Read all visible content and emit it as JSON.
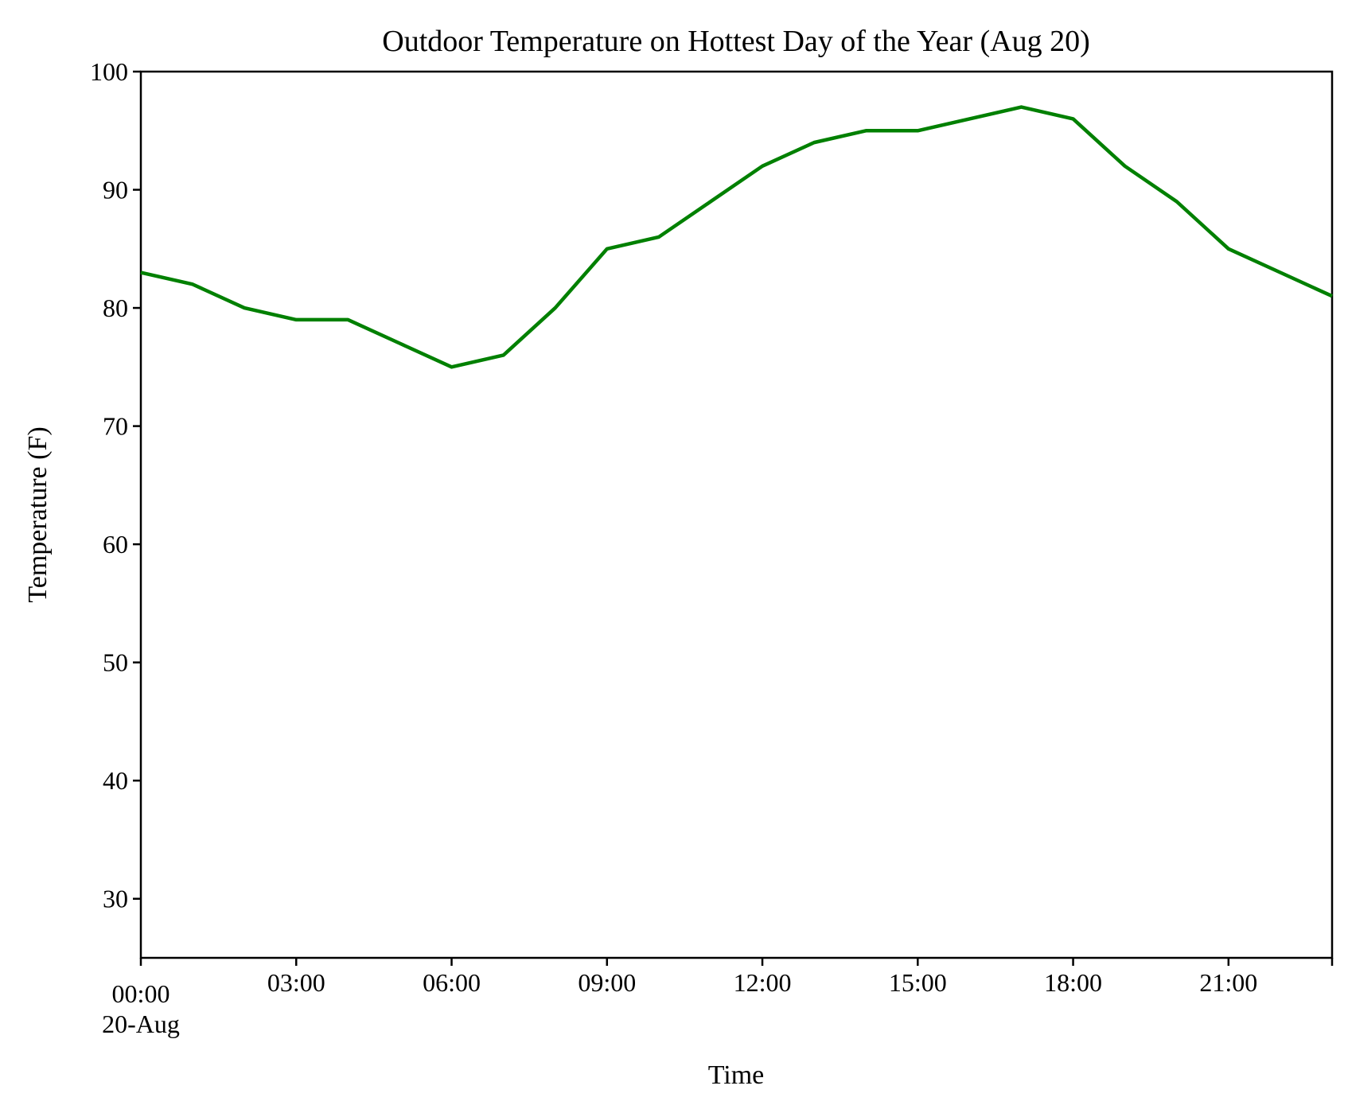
{
  "chart_data": {
    "type": "line",
    "title": "Outdoor Temperature on Hottest Day of the Year (Aug 20)",
    "xlabel": "Time",
    "ylabel": "Temperature (F)",
    "x": [
      0,
      1,
      2,
      3,
      4,
      5,
      6,
      7,
      8,
      9,
      10,
      11,
      12,
      13,
      14,
      15,
      16,
      17,
      18,
      19,
      20,
      21,
      22,
      23
    ],
    "xlim": [
      0,
      23
    ],
    "ylim": [
      25,
      100
    ],
    "x_ticks": [
      {
        "value": 0,
        "label": "00:00",
        "sublabel": "20-Aug"
      },
      {
        "value": 3,
        "label": "03:00"
      },
      {
        "value": 6,
        "label": "06:00"
      },
      {
        "value": 9,
        "label": "09:00"
      },
      {
        "value": 12,
        "label": "12:00"
      },
      {
        "value": 15,
        "label": "15:00"
      },
      {
        "value": 18,
        "label": "18:00"
      },
      {
        "value": 21,
        "label": "21:00"
      }
    ],
    "y_ticks": [
      {
        "value": 30,
        "label": "30"
      },
      {
        "value": 40,
        "label": "40"
      },
      {
        "value": 50,
        "label": "50"
      },
      {
        "value": 60,
        "label": "60"
      },
      {
        "value": 70,
        "label": "70"
      },
      {
        "value": 80,
        "label": "80"
      },
      {
        "value": 90,
        "label": "90"
      },
      {
        "value": 100,
        "label": "100"
      }
    ],
    "series": [
      {
        "name": "Temperature",
        "color": "#008000",
        "values": [
          83,
          82,
          80,
          79,
          79,
          77,
          75,
          76,
          80,
          85,
          86,
          89,
          92,
          94,
          95,
          95,
          96,
          97,
          96,
          92,
          89,
          85,
          83,
          81
        ]
      }
    ],
    "grid": false,
    "legend": "none"
  }
}
